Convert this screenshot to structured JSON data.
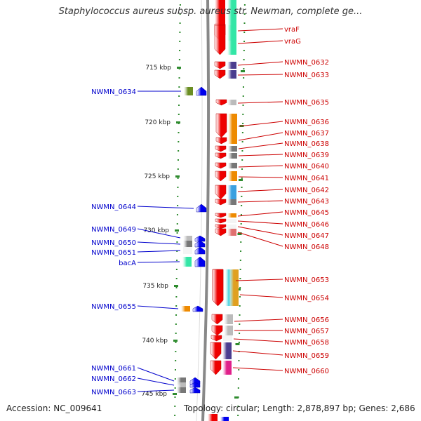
{
  "title": "Staphylococcus aureus subsp. aureus str. Newman, complete ge...",
  "accession": "Accession: NC_009641",
  "summary": "Topology: circular; Length: 2,878,897 bp; Genes: 2,686",
  "colors": {
    "forward_gene": "#ee0000",
    "reverse_gene": "#0000ee",
    "right_label": "#cc0000",
    "left_label": "#0000cc",
    "backbone": "#888888",
    "ticks": "#2e8b2e"
  },
  "ticks": [
    {
      "kbp": 715,
      "label": "715 kbp"
    },
    {
      "kbp": 720,
      "label": "720 kbp"
    },
    {
      "kbp": 725,
      "label": "725 kbp"
    },
    {
      "kbp": 730,
      "label": "730 kbp"
    },
    {
      "kbp": 735,
      "label": "735 kbp"
    },
    {
      "kbp": 740,
      "label": "740 kbp"
    },
    {
      "kbp": 745,
      "label": "745 kbp"
    }
  ],
  "forward_genes": [
    {
      "name": "vraF",
      "category_color": "#33e6a6"
    },
    {
      "name": "vraG",
      "category_color": "#33e6a6"
    },
    {
      "name": "NWMN_0632",
      "category_color": "#4b3d8f"
    },
    {
      "name": "NWMN_0633",
      "category_color": "#4b3d8f"
    },
    {
      "name": "NWMN_0635",
      "category_color": "#bbbbbb"
    },
    {
      "name": "NWMN_0636",
      "category_color": "#ee8a00"
    },
    {
      "name": "NWMN_0637",
      "category_color": "#ee8a00"
    },
    {
      "name": "NWMN_0638",
      "category_color": "#777777"
    },
    {
      "name": "NWMN_0639",
      "category_color": "#777777"
    },
    {
      "name": "NWMN_0640",
      "category_color": "#777777"
    },
    {
      "name": "NWMN_0641",
      "category_color": "#ee8a00"
    },
    {
      "name": "NWMN_0642",
      "category_color": "#3aa0e0"
    },
    {
      "name": "NWMN_0643",
      "category_color": "#777777"
    },
    {
      "name": "NWMN_0645",
      "category_color": "#ee8a00"
    },
    {
      "name": "NWMN_0646",
      "category_color": "#ffffff"
    },
    {
      "name": "NWMN_0647",
      "category_color": "#ffffff"
    },
    {
      "name": "NWMN_0648",
      "category_color": "#e07070"
    },
    {
      "name": "NWMN_0653",
      "category_color": "#22c8d8"
    },
    {
      "name": "NWMN_0654",
      "category_color": "#e0a020"
    },
    {
      "name": "NWMN_0656",
      "category_color": "#bbbbbb"
    },
    {
      "name": "NWMN_0657",
      "category_color": "#bbbbbb"
    },
    {
      "name": "NWMN_0658",
      "category_color": "#ffffff"
    },
    {
      "name": "NWMN_0659",
      "category_color": "#4b3d8f"
    },
    {
      "name": "NWMN_0660",
      "category_color": "#e0208a"
    }
  ],
  "reverse_genes": [
    {
      "name": "NWMN_0634",
      "category_color": "#6b8e23"
    },
    {
      "name": "NWMN_0644",
      "category_color": "#ffffff"
    },
    {
      "name": "NWMN_0649",
      "category_color": "#bbbbbb"
    },
    {
      "name": "NWMN_0650",
      "category_color": "#777777"
    },
    {
      "name": "NWMN_0651",
      "category_color": "#ffffff"
    },
    {
      "name": "bacA",
      "category_color": "#33e6a6"
    },
    {
      "name": "NWMN_0655",
      "category_color": "#ee8a00"
    },
    {
      "name": "NWMN_0661",
      "category_color": "#777777"
    },
    {
      "name": "NWMN_0662",
      "category_color": "#bbbbbb"
    },
    {
      "name": "NWMN_0663",
      "category_color": "#777777"
    }
  ]
}
